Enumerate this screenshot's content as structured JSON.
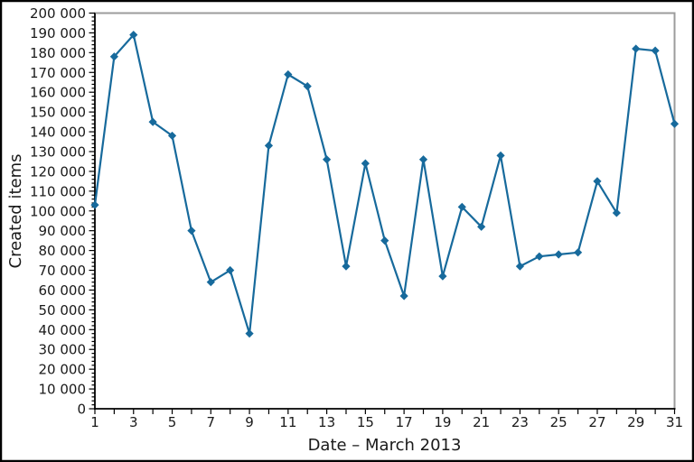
{
  "chart_data": {
    "type": "line",
    "title": "",
    "xlabel": "Date – March 2013",
    "ylabel": "Created items",
    "x": [
      1,
      2,
      3,
      4,
      5,
      6,
      7,
      8,
      9,
      10,
      11,
      12,
      13,
      14,
      15,
      16,
      17,
      18,
      19,
      20,
      21,
      22,
      23,
      24,
      25,
      26,
      27,
      28,
      29,
      30,
      31
    ],
    "series": [
      {
        "name": "Created items",
        "marker": "diamond",
        "color": "#176a9c",
        "values": [
          103000,
          178000,
          189000,
          145000,
          138000,
          90000,
          64000,
          70000,
          38000,
          133000,
          169000,
          163000,
          126000,
          72000,
          124000,
          85000,
          57000,
          126000,
          67000,
          102000,
          92000,
          128000,
          72000,
          77000,
          78000,
          79000,
          115000,
          99000,
          182000,
          181000,
          144000
        ]
      }
    ],
    "xlim": [
      1,
      31
    ],
    "ylim": [
      0,
      200000
    ],
    "y_major_tick_interval": 10000,
    "y_minor_tick_interval": 2000,
    "x_tick_interval": 1,
    "x_labeled_ticks": [
      1,
      3,
      5,
      7,
      9,
      11,
      13,
      15,
      17,
      19,
      21,
      23,
      25,
      27,
      29,
      31
    ],
    "y_tick_labels": [
      "0",
      "10 000",
      "20 000",
      "30 000",
      "40 000",
      "50 000",
      "60 000",
      "70 000",
      "80 000",
      "90 000",
      "100 000",
      "110 000",
      "120 000",
      "130 000",
      "140 000",
      "150 000",
      "160 000",
      "170 000",
      "180 000",
      "190 000",
      "200 000"
    ],
    "thousands_separator": " ",
    "grid": false,
    "legend_position": "none",
    "colors": {
      "series": "#176a9c",
      "axis": "#000000",
      "frame": "#9c9c9c",
      "text": "#1a1a1a",
      "background": "#ffffff",
      "outer_border": "#000000"
    }
  }
}
